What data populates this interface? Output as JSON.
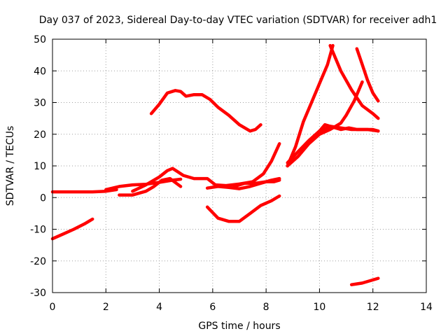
{
  "chart_data": {
    "type": "scatter",
    "title": "Day 037 of 2023, Sidereal Day-to-day VTEC variation (SDTVAR) for receiver adh1",
    "xlabel": "GPS time / hours",
    "ylabel": "SDTVAR / TECUs",
    "xlim": [
      0,
      14
    ],
    "ylim": [
      -30,
      50
    ],
    "xticks": [
      "0",
      "2",
      "4",
      "6",
      "8",
      "10",
      "12",
      "14"
    ],
    "yticks": [
      "-30",
      "-20",
      "-10",
      "0",
      "10",
      "20",
      "30",
      "40",
      "50"
    ],
    "grid": true,
    "marker_color": "#ff0000",
    "series": [
      {
        "name": "s1",
        "x": [
          0,
          0.5,
          1.0,
          1.5,
          2.0,
          2.4
        ],
        "y": [
          1.8,
          1.8,
          1.8,
          1.8,
          2.0,
          2.5
        ]
      },
      {
        "name": "s2",
        "x": [
          0,
          0.4,
          0.8,
          1.2,
          1.5
        ],
        "y": [
          -13,
          -11.5,
          -10,
          -8.3,
          -6.8
        ]
      },
      {
        "name": "s3",
        "x": [
          2.0,
          2.5,
          3.0,
          3.5,
          4.0,
          4.5,
          4.8
        ],
        "y": [
          2.5,
          3.5,
          4.0,
          4.2,
          4.8,
          5.5,
          5.8
        ]
      },
      {
        "name": "s4",
        "x": [
          2.5,
          3.0,
          3.5,
          3.8,
          4.1,
          4.4,
          4.8
        ],
        "y": [
          0.8,
          0.8,
          2.0,
          3.5,
          5.5,
          6.0,
          3.5
        ]
      },
      {
        "name": "s5",
        "x": [
          3.0,
          3.5,
          4.0,
          4.3,
          4.5,
          4.9,
          5.3,
          5.8,
          6.1,
          6.5,
          7.0,
          7.5,
          7.9,
          8.2,
          8.5
        ],
        "y": [
          2.0,
          4.0,
          6.5,
          8.5,
          9.2,
          7.0,
          6.0,
          6.0,
          4.0,
          3.8,
          4.3,
          5.0,
          7.5,
          11.5,
          17.0
        ]
      },
      {
        "name": "s6",
        "x": [
          5.8,
          6.2,
          6.6,
          7.0,
          7.4,
          7.8,
          8.2,
          8.5
        ],
        "y": [
          3.0,
          3.5,
          3.2,
          2.8,
          3.5,
          4.5,
          5.5,
          6.0
        ]
      },
      {
        "name": "s7",
        "x": [
          6.8,
          7.2,
          7.6,
          8.0,
          8.3,
          8.5
        ],
        "y": [
          3.5,
          4.5,
          4.5,
          5.0,
          5.0,
          5.5
        ]
      },
      {
        "name": "s8",
        "x": [
          5.8,
          6.2,
          6.6,
          7.0,
          7.4,
          7.8,
          8.2,
          8.5
        ],
        "y": [
          -3.0,
          -6.5,
          -7.5,
          -7.5,
          -5.0,
          -2.5,
          -1.0,
          0.5
        ]
      },
      {
        "name": "s9",
        "x": [
          3.7,
          4.0,
          4.3,
          4.6,
          4.8,
          5.0,
          5.3,
          5.6,
          5.9,
          6.2,
          6.6,
          7.0,
          7.4,
          7.6,
          7.8
        ],
        "y": [
          26.5,
          29.5,
          33.0,
          33.8,
          33.5,
          32.0,
          32.5,
          32.5,
          31.0,
          28.5,
          26.0,
          23.0,
          21.0,
          21.5,
          23.0
        ]
      },
      {
        "name": "s10",
        "x": [
          8.8,
          9.2,
          9.6,
          10.0,
          10.4,
          10.8,
          11.2,
          11.6,
          12.0,
          12.2
        ],
        "y": [
          11.0,
          14.5,
          18.0,
          21.0,
          22.5,
          22.0,
          21.5,
          21.5,
          21.5,
          21.0
        ]
      },
      {
        "name": "s11",
        "x": [
          8.8,
          9.2,
          9.6,
          10.0,
          10.4,
          10.8,
          11.0,
          11.3,
          11.6
        ],
        "y": [
          10.0,
          13.0,
          17.0,
          20.0,
          21.5,
          23.5,
          26.0,
          30.5,
          36.5
        ]
      },
      {
        "name": "s12",
        "x": [
          8.8,
          9.1,
          9.4,
          9.7,
          10.0,
          10.3,
          10.5
        ],
        "y": [
          10.0,
          16.0,
          24.0,
          30.0,
          36.0,
          42.0,
          48.0
        ]
      },
      {
        "name": "s13",
        "x": [
          9.8,
          10.2,
          10.6,
          10.8,
          11.1,
          11.4,
          11.8,
          12.2
        ],
        "y": [
          19.0,
          23.0,
          22.0,
          21.5,
          22.0,
          21.5,
          21.5,
          21.0
        ]
      },
      {
        "name": "s14",
        "x": [
          10.4,
          10.8,
          11.2,
          11.6,
          12.0,
          12.2
        ],
        "y": [
          48.0,
          40.0,
          34.0,
          29.0,
          26.5,
          25.0
        ]
      },
      {
        "name": "s15",
        "x": [
          11.4,
          11.6,
          11.8,
          12.0,
          12.2
        ],
        "y": [
          47.0,
          42.0,
          37.0,
          33.0,
          30.5
        ]
      },
      {
        "name": "s16",
        "x": [
          11.2,
          11.6,
          12.0,
          12.2
        ],
        "y": [
          -27.5,
          -27.0,
          -26.0,
          -25.5
        ]
      }
    ]
  }
}
